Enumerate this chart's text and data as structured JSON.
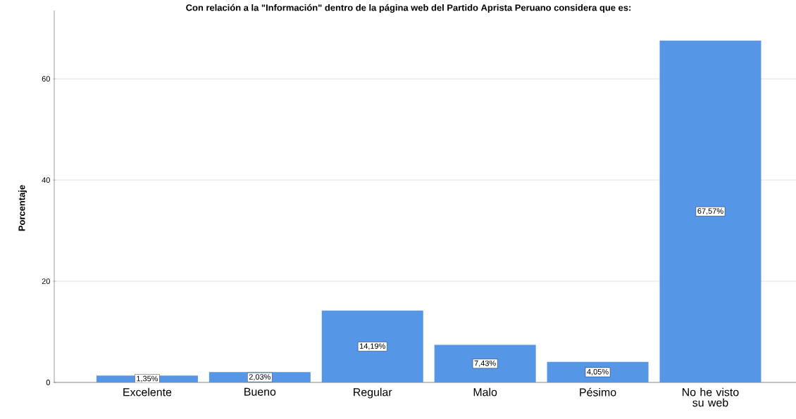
{
  "chart_data": {
    "type": "bar",
    "title": "Con relación a la \"Información\" dentro de la página web del Partido Aprista Peruano considera que es:",
    "ylabel": "Porcentaje",
    "categories": [
      "Excelente",
      "Bueno",
      "Regular",
      "Malo",
      "Pésimo",
      "No he visto su web"
    ],
    "values": [
      1.35,
      2.03,
      14.19,
      7.43,
      4.05,
      67.57
    ],
    "value_labels": [
      "1,35%",
      "2,03%",
      "14,19%",
      "7,43%",
      "4,05%",
      "67,57%"
    ],
    "color": "#5596e6",
    "ylim": [
      0,
      73.5
    ],
    "yticks": [
      0,
      20,
      40,
      60
    ],
    "grid": "y"
  }
}
